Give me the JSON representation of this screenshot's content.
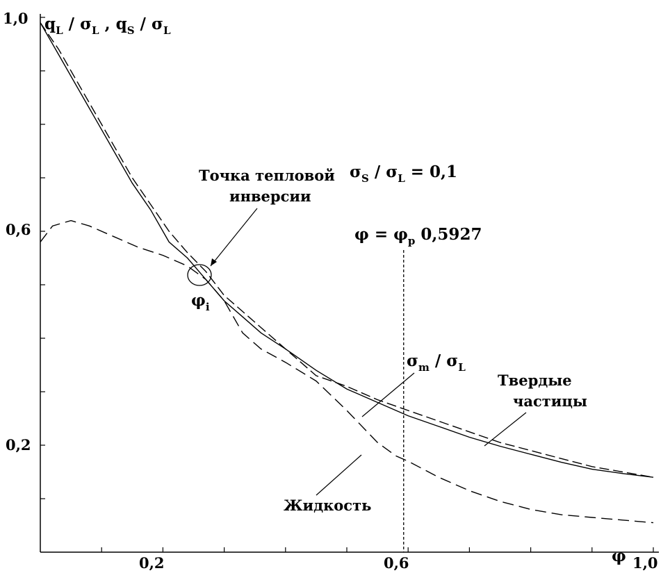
{
  "chart_data": {
    "type": "line",
    "y_axis_title": {
      "a": "q",
      "a_sub": "L",
      "a_den": "σ",
      "a_den_sub": "L",
      "b": "q",
      "b_sub": "S",
      "b_den": "σ",
      "b_den_sub": "L"
    },
    "x_axis_title": "φ",
    "x_ticks": [
      {
        "value": 0.2,
        "label": "0,2"
      },
      {
        "value": 0.6,
        "label": "0,6"
      },
      {
        "value": 1.0,
        "label": "1,0"
      }
    ],
    "y_ticks": [
      {
        "value": 0.2,
        "label": "0,2"
      },
      {
        "value": 0.6,
        "label": "0,6"
      },
      {
        "value": 1.0,
        "label": "1,0"
      }
    ],
    "xlim": [
      0.0,
      1.0
    ],
    "ylim": [
      0.0,
      1.0
    ],
    "grid": false,
    "legend": "none",
    "series": [
      {
        "style": "solid",
        "x": [
          0.0,
          0.03,
          0.06,
          0.09,
          0.12,
          0.15,
          0.18,
          0.21,
          0.24,
          0.27,
          0.3,
          0.33,
          0.36,
          0.4,
          0.45,
          0.5,
          0.55,
          0.6,
          0.65,
          0.7,
          0.75,
          0.8,
          0.85,
          0.9,
          0.95,
          1.0
        ],
        "y": [
          0.99,
          0.93,
          0.87,
          0.81,
          0.75,
          0.69,
          0.64,
          0.58,
          0.55,
          0.51,
          0.47,
          0.44,
          0.41,
          0.38,
          0.34,
          0.305,
          0.28,
          0.255,
          0.235,
          0.215,
          0.198,
          0.183,
          0.168,
          0.155,
          0.147,
          0.14
        ]
      },
      {
        "style": "dashed",
        "x": [
          0.0,
          0.03,
          0.06,
          0.09,
          0.12,
          0.15,
          0.18,
          0.21,
          0.24,
          0.27,
          0.3,
          0.33,
          0.36,
          0.4,
          0.45,
          0.5,
          0.55,
          0.6,
          0.65,
          0.7,
          0.75,
          0.8,
          0.85,
          0.9,
          0.95,
          1.0
        ],
        "y": [
          0.99,
          0.94,
          0.88,
          0.82,
          0.76,
          0.7,
          0.65,
          0.6,
          0.56,
          0.525,
          0.48,
          0.45,
          0.42,
          0.38,
          0.33,
          0.31,
          0.285,
          0.265,
          0.245,
          0.225,
          0.205,
          0.19,
          0.175,
          0.16,
          0.15,
          0.14
        ]
      },
      {
        "style": "dashed",
        "x": [
          0.0,
          0.02,
          0.05,
          0.08,
          0.12,
          0.16,
          0.2,
          0.24,
          0.27,
          0.3,
          0.33,
          0.36,
          0.4,
          0.45,
          0.5,
          0.55,
          0.58,
          0.6,
          0.65,
          0.7,
          0.75,
          0.8,
          0.85,
          0.9,
          0.95,
          1.0
        ],
        "y": [
          0.58,
          0.61,
          0.62,
          0.61,
          0.59,
          0.57,
          0.555,
          0.535,
          0.51,
          0.47,
          0.41,
          0.38,
          0.355,
          0.32,
          0.265,
          0.205,
          0.18,
          0.17,
          0.14,
          0.115,
          0.095,
          0.08,
          0.07,
          0.065,
          0.06,
          0.055
        ]
      }
    ],
    "annotations": {
      "inversion_text_1": "Точка тепловой",
      "inversion_text_2": "инверсии",
      "phi_i": "φ",
      "phi_i_sub": "i",
      "ratio_num": "σ",
      "ratio_num_sub": "S",
      "ratio_mid": "/ σ",
      "ratio_den_sub": "L",
      "ratio_value": "= 0,1",
      "percolation_a": "φ = φ",
      "percolation_sub": "p",
      "percolation_value": "0,5927",
      "percolation_x": 0.5927,
      "sigma_m": "σ",
      "sigma_m_sub": "m",
      "sigma_m_mid": "/ σ",
      "sigma_m_den_sub": "L",
      "solid_1": "Твердые",
      "solid_2": "частицы",
      "liquid": "Жидкость"
    }
  }
}
